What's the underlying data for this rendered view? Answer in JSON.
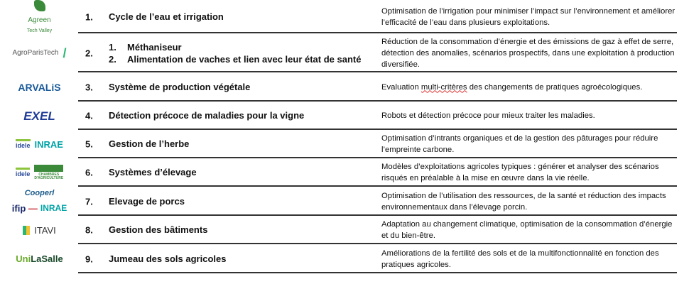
{
  "rows": [
    {
      "num": "1.",
      "title": "Cycle de l’eau et irrigation",
      "description": "Optimisation de l’irrigation pour minimiser l’impact sur l’environnement et améliorer l’efficacité de l’eau dans plusieurs exploitations.",
      "logos": [
        "Agreen Tech Valley"
      ]
    },
    {
      "num": "2.",
      "subitems": [
        {
          "num": "1.",
          "title": "Méthaniseur"
        },
        {
          "num": "2.",
          "title": "Alimentation de vaches et lien avec leur état de santé"
        }
      ],
      "description": "Réduction de la consommation d’énergie et des émissions de gaz à effet de serre, détection des anomalies, scénarios prospectifs, dans une exploitation à production diversifiée.",
      "logos": [
        "AgroParisTech"
      ]
    },
    {
      "num": "3.",
      "title": "Système de production végétale",
      "description_pre": "Evaluation ",
      "description_flag": "multi-critères",
      "description_post": " des changements de pratiques agroécologiques.",
      "logos": [
        "ARVALIS"
      ]
    },
    {
      "num": "4.",
      "title": "Détection précoce de maladies pour la vigne",
      "description": "Robots et détection précoce pour mieux traiter les maladies.",
      "logos": [
        "EXEL"
      ]
    },
    {
      "num": "5.",
      "title": "Gestion de l’herbe",
      "description": "Optimisation d’intrants organiques et de la gestion des pâturages pour réduire l’empreinte carbone.",
      "logos": [
        "idele",
        "INRAE"
      ]
    },
    {
      "num": "6.",
      "title": "Systèmes d’élevage",
      "description": "Modèles d’exploitations agricoles typiques : générer et analyser des scénarios risqués en préalable à la mise en œuvre dans la vie réelle.",
      "logos": [
        "idele",
        "CHAMBRES D'AGRICULTURE"
      ]
    },
    {
      "num": "7.",
      "title": "Elevage de porcs",
      "description": "Optimisation de l’utilisation des ressources, de la santé et réduction des impacts environnementaux dans l’élevage porcin.",
      "logos": [
        "Cooperl",
        "ifip",
        "INRAE"
      ]
    },
    {
      "num": "8.",
      "title": "Gestion des bâtiments",
      "description": "Adaptation au changement climatique, optimisation de la consommation d’énergie et du bien-être.",
      "logos": [
        "ITAVI"
      ]
    },
    {
      "num": "9.",
      "title": "Jumeau des sols agricoles",
      "description": "Améliorations de la fertilité des sols et de la multifonctionnalité en fonction des pratiques agricoles.",
      "logos": [
        "UniLaSalle"
      ]
    }
  ],
  "colors": {
    "rule": "#333333",
    "agreen": "#3a8a3a",
    "agroparistech": "#2bb673",
    "arvalis": "#1a5a9a",
    "exel": "#1e3c96",
    "inrae": "#00a3a6",
    "idele": "#2a4a9a",
    "ifip": "#1a2a6a",
    "ifip_bar": "#c0222b",
    "itavi": "#333333",
    "unilasalle": "#6aaa2a"
  }
}
